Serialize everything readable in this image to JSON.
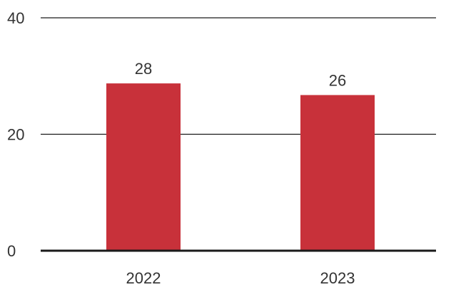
{
  "chart_data": {
    "type": "bar",
    "categories": [
      "2022",
      "2023"
    ],
    "values": [
      28,
      26
    ],
    "data_labels": [
      "28",
      "26"
    ],
    "yticks": [
      0,
      20,
      40
    ],
    "ytick_labels": [
      "0",
      "20",
      "40"
    ],
    "ylim": [
      0,
      40
    ],
    "grid": true,
    "legend": "none",
    "title": "",
    "xlabel": "",
    "ylabel": "",
    "colors": {
      "bar": "#c8313a",
      "axis": "#1a1a1a",
      "text": "#333333"
    }
  }
}
